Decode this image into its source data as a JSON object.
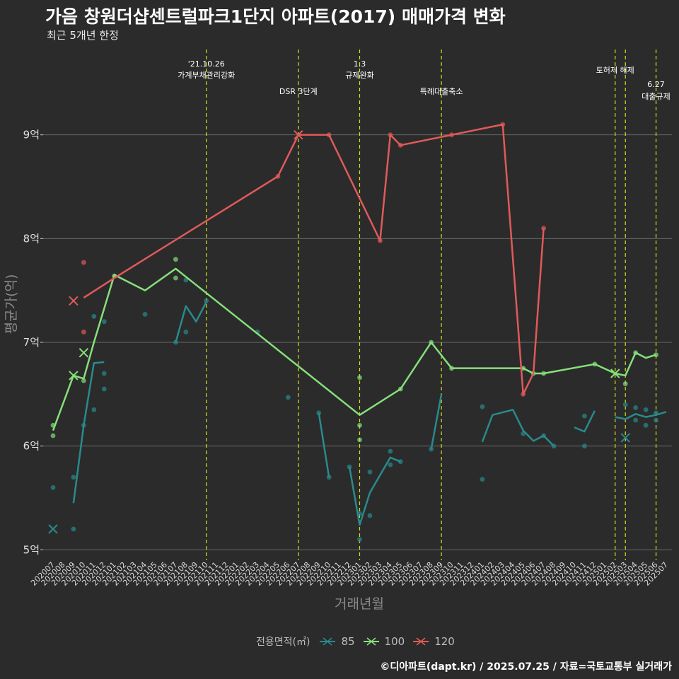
{
  "title": "가음 창원더샵센트럴파크1단지 아파트(2017) 매매가격 변화",
  "subtitle": "최근 5개년 한정",
  "caption": "©디아파트(dapt.kr) / 2025.07.25 / 자료=국토교통부 실거래가",
  "legend_title": "전용면적(㎡)",
  "colors": {
    "85": "#2a8a8c",
    "100": "#86e07a",
    "120": "#e05a5a",
    "event": "#d6e21a",
    "grid": "#6a6a6a"
  },
  "chart_data": {
    "type": "line",
    "xlabel": "거래년월",
    "ylabel": "평균가(억)",
    "ylim": [
      4.9,
      9.85
    ],
    "y_ticks": [
      5,
      6,
      7,
      8,
      9
    ],
    "y_tick_labels": [
      "5억",
      "6억",
      "7억",
      "8억",
      "9억"
    ],
    "x_months": [
      "202007",
      "202008",
      "202009",
      "202010",
      "202011",
      "202012",
      "202101",
      "202102",
      "202103",
      "202104",
      "202105",
      "202106",
      "202107",
      "202108",
      "202109",
      "202110",
      "202111",
      "202112",
      "202201",
      "202202",
      "202203",
      "202204",
      "202205",
      "202206",
      "202207",
      "202208",
      "202209",
      "202210",
      "202211",
      "202212",
      "202301",
      "202302",
      "202303",
      "202304",
      "202305",
      "202306",
      "202307",
      "202308",
      "202309",
      "202310",
      "202311",
      "202312",
      "202401",
      "202402",
      "202403",
      "202404",
      "202405",
      "202406",
      "202407",
      "202408",
      "202409",
      "202410",
      "202411",
      "202412",
      "202501",
      "202502",
      "202503",
      "202504",
      "202505",
      "202506",
      "202507"
    ],
    "events": [
      {
        "month": "202110",
        "text": [
          "'21.10.26",
          "가계부채관리강화"
        ]
      },
      {
        "month": "202207",
        "text": [
          "DSR 3단계"
        ]
      },
      {
        "month": "202301",
        "text": [
          "1.3",
          "규제완화"
        ]
      },
      {
        "month": "202309",
        "text": [
          "특례대출축소"
        ]
      },
      {
        "month": "202502",
        "text": [
          "토허제 해제"
        ]
      },
      {
        "month": "202503",
        "text": []
      },
      {
        "month": "202506",
        "text": [
          "6.27",
          "대출규제"
        ]
      }
    ],
    "series": [
      {
        "name": "85",
        "line": [
          [
            "202009",
            5.45
          ],
          [
            "202010",
            6.2
          ],
          [
            "202011",
            6.8
          ],
          [
            "202012",
            6.81
          ],
          null,
          [
            "202107",
            7.0
          ],
          [
            "202108",
            7.35
          ],
          [
            "202109",
            7.2
          ],
          [
            "202110",
            7.39
          ],
          null,
          [
            "202209",
            6.32
          ],
          [
            "202210",
            5.7
          ],
          null,
          [
            "202212",
            5.8
          ],
          [
            "202301",
            5.24
          ],
          [
            "202302",
            5.55
          ],
          [
            "202304",
            5.89
          ],
          [
            "202305",
            5.85
          ],
          null,
          [
            "202308",
            5.97
          ],
          [
            "202309",
            6.5
          ],
          null,
          [
            "202401",
            6.04
          ],
          [
            "202402",
            6.3
          ],
          [
            "202404",
            6.35
          ],
          [
            "202405",
            6.15
          ],
          [
            "202406",
            6.05
          ],
          [
            "202407",
            6.1
          ],
          [
            "202408",
            6.0
          ],
          null,
          [
            "202410",
            6.18
          ],
          [
            "202411",
            6.14
          ],
          [
            "202412",
            6.34
          ],
          null,
          [
            "202502",
            6.28
          ],
          [
            "202503",
            6.26
          ],
          [
            "202504",
            6.31
          ],
          [
            "202505",
            6.28
          ],
          [
            "202506",
            6.3
          ],
          [
            "202507",
            6.33
          ]
        ],
        "points": [
          [
            "202007",
            5.6
          ],
          [
            "202009",
            5.7
          ],
          [
            "202009",
            5.2
          ],
          [
            "202010",
            6.2
          ],
          [
            "202011",
            6.35
          ],
          [
            "202011",
            7.25
          ],
          [
            "202012",
            6.7
          ],
          [
            "202012",
            6.55
          ],
          [
            "202012",
            7.2
          ],
          [
            "202104",
            7.27
          ],
          [
            "202107",
            7.0
          ],
          [
            "202108",
            7.6
          ],
          [
            "202108",
            7.1
          ],
          [
            "202110",
            7.4
          ],
          [
            "202203",
            7.1
          ],
          [
            "202206",
            6.47
          ],
          [
            "202209",
            6.32
          ],
          [
            "202210",
            5.7
          ],
          [
            "202212",
            5.8
          ],
          [
            "202301",
            5.35
          ],
          [
            "202301",
            5.1
          ],
          [
            "202302",
            5.75
          ],
          [
            "202302",
            5.33
          ],
          [
            "202304",
            5.95
          ],
          [
            "202304",
            5.82
          ],
          [
            "202305",
            5.85
          ],
          [
            "202308",
            5.97
          ],
          [
            "202401",
            6.38
          ],
          [
            "202401",
            5.68
          ],
          [
            "202405",
            6.12
          ],
          [
            "202407",
            6.1
          ],
          [
            "202408",
            6.0
          ],
          [
            "202411",
            6.29
          ],
          [
            "202411",
            6.0
          ],
          [
            "202503",
            6.4
          ],
          [
            "202504",
            6.37
          ],
          [
            "202504",
            6.25
          ],
          [
            "202505",
            6.35
          ],
          [
            "202505",
            6.2
          ],
          [
            "202506",
            6.32
          ],
          [
            "202506",
            6.25
          ]
        ],
        "markers": [
          [
            "202007",
            5.2
          ],
          [
            "202503",
            6.08
          ]
        ]
      },
      {
        "name": "100",
        "line": [
          [
            "202007",
            6.15
          ],
          [
            "202009",
            6.68
          ],
          [
            "202010",
            6.65
          ],
          [
            "202011",
            7.0
          ],
          [
            "202101",
            7.65
          ],
          [
            "202104",
            7.5
          ],
          [
            "202107",
            7.71
          ],
          [
            "202301",
            6.3
          ],
          [
            "202305",
            6.55
          ],
          [
            "202308",
            7.0
          ],
          [
            "202310",
            6.75
          ],
          [
            "202404",
            6.75
          ],
          [
            "202405",
            6.75
          ],
          [
            "202406",
            6.7
          ],
          [
            "202407",
            6.7
          ],
          [
            "202412",
            6.79
          ],
          [
            "202502",
            6.7
          ],
          [
            "202503",
            6.68
          ],
          [
            "202504",
            6.9
          ],
          [
            "202505",
            6.85
          ],
          [
            "202506",
            6.88
          ]
        ],
        "points": [
          [
            "202007",
            6.2
          ],
          [
            "202007",
            6.1
          ],
          [
            "202010",
            6.63
          ],
          [
            "202101",
            7.64
          ],
          [
            "202107",
            7.8
          ],
          [
            "202107",
            7.62
          ],
          [
            "202301",
            6.66
          ],
          [
            "202301",
            6.2
          ],
          [
            "202301",
            6.06
          ],
          [
            "202305",
            6.55
          ],
          [
            "202308",
            7.0
          ],
          [
            "202310",
            6.75
          ],
          [
            "202405",
            6.75
          ],
          [
            "202406",
            6.7
          ],
          [
            "202407",
            6.7
          ],
          [
            "202412",
            6.79
          ],
          [
            "202503",
            6.6
          ],
          [
            "202504",
            6.9
          ],
          [
            "202506",
            6.88
          ]
        ],
        "markers": [
          [
            "202009",
            6.68
          ],
          [
            "202010",
            6.9
          ],
          [
            "202502",
            6.7
          ]
        ]
      },
      {
        "name": "120",
        "line": [
          [
            "202010",
            7.43
          ],
          [
            "202101",
            7.62
          ],
          [
            "202205",
            8.6
          ],
          [
            "202207",
            9.0
          ],
          [
            "202210",
            9.0
          ],
          [
            "202303",
            7.98
          ],
          [
            "202304",
            9.0
          ],
          [
            "202305",
            8.9
          ],
          [
            "202310",
            9.0
          ],
          [
            "202403",
            9.1
          ],
          [
            "202405",
            6.5
          ],
          [
            "202406",
            6.7
          ],
          [
            "202407",
            8.1
          ]
        ],
        "points": [
          [
            "202010",
            7.77
          ],
          [
            "202010",
            7.1
          ],
          [
            "202205",
            8.6
          ],
          [
            "202210",
            9.0
          ],
          [
            "202303",
            7.98
          ],
          [
            "202304",
            9.0
          ],
          [
            "202305",
            8.9
          ],
          [
            "202310",
            9.0
          ],
          [
            "202403",
            9.1
          ],
          [
            "202405",
            6.5
          ],
          [
            "202407",
            8.1
          ]
        ],
        "markers": [
          [
            "202009",
            7.4
          ],
          [
            "202207",
            9.0
          ]
        ]
      }
    ]
  }
}
